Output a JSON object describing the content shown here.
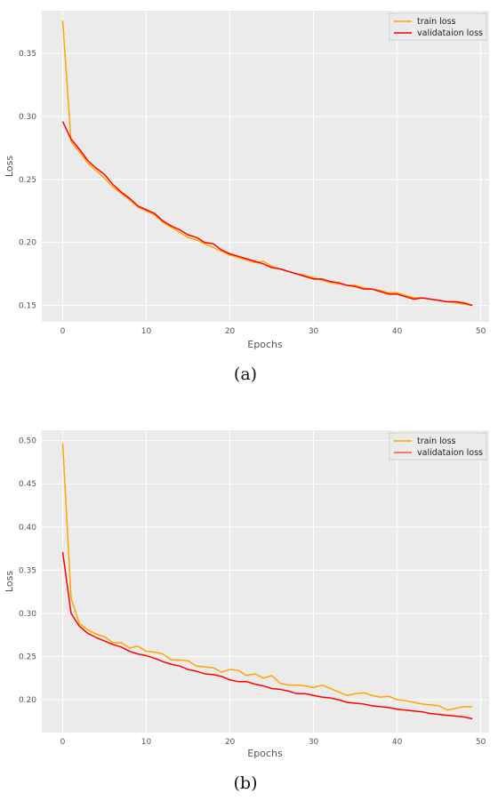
{
  "chart_data": [
    {
      "type": "line",
      "caption": "(a)",
      "xlabel": "Epochs",
      "ylabel": "Loss",
      "xlim": [
        -2.5,
        51
      ],
      "ylim": [
        0.137,
        0.384
      ],
      "xticks": [
        0,
        10,
        20,
        30,
        40,
        50
      ],
      "yticks": [
        0.15,
        0.2,
        0.25,
        0.3,
        0.35
      ],
      "ytick_labels": [
        "0.15",
        "0.20",
        "0.25",
        "0.30",
        "0.35"
      ],
      "grid": true,
      "legend_position": "top-right",
      "colors": {
        "train": "#ffa500",
        "validation": "#ff0000"
      },
      "series": [
        {
          "name": "train loss",
          "color": "#ffa500",
          "values": [
            0.376,
            0.28,
            0.272,
            0.263,
            0.257,
            0.251,
            0.244,
            0.239,
            0.234,
            0.228,
            0.225,
            0.222,
            0.216,
            0.212,
            0.208,
            0.204,
            0.202,
            0.199,
            0.196,
            0.193,
            0.19,
            0.188,
            0.186,
            0.184,
            0.185,
            0.181,
            0.179,
            0.177,
            0.175,
            0.174,
            0.172,
            0.17,
            0.168,
            0.167,
            0.166,
            0.166,
            0.164,
            0.163,
            0.162,
            0.16,
            0.16,
            0.158,
            0.156,
            0.156,
            0.155,
            0.154,
            0.153,
            0.152,
            0.151,
            0.15
          ]
        },
        {
          "name": "validataion loss",
          "color": "#ff0000",
          "values": [
            0.296,
            0.282,
            0.274,
            0.265,
            0.259,
            0.254,
            0.246,
            0.24,
            0.235,
            0.229,
            0.226,
            0.223,
            0.217,
            0.213,
            0.21,
            0.206,
            0.204,
            0.2,
            0.199,
            0.194,
            0.191,
            0.189,
            0.187,
            0.185,
            0.183,
            0.18,
            0.179,
            0.177,
            0.175,
            0.173,
            0.171,
            0.171,
            0.169,
            0.168,
            0.166,
            0.165,
            0.163,
            0.163,
            0.161,
            0.159,
            0.159,
            0.157,
            0.155,
            0.156,
            0.155,
            0.154,
            0.153,
            0.153,
            0.152,
            0.15
          ]
        }
      ]
    },
    {
      "type": "line",
      "caption": "(b)",
      "xlabel": "Epochs",
      "ylabel": "Loss",
      "xlim": [
        -2.5,
        51
      ],
      "ylim": [
        0.162,
        0.512
      ],
      "xticks": [
        0,
        10,
        20,
        30,
        40,
        50
      ],
      "yticks": [
        0.2,
        0.25,
        0.3,
        0.35,
        0.4,
        0.45,
        0.5
      ],
      "ytick_labels": [
        "0.20",
        "0.25",
        "0.30",
        "0.35",
        "0.40",
        "0.45",
        "0.50"
      ],
      "grid": true,
      "legend_position": "top-right",
      "colors": {
        "train": "#ffa500",
        "validation": "#ff0000"
      },
      "series": [
        {
          "name": "train loss",
          "color": "#ffa500",
          "values": [
            0.497,
            0.318,
            0.288,
            0.281,
            0.276,
            0.273,
            0.266,
            0.266,
            0.26,
            0.262,
            0.256,
            0.255,
            0.253,
            0.246,
            0.246,
            0.245,
            0.239,
            0.238,
            0.237,
            0.232,
            0.235,
            0.234,
            0.228,
            0.23,
            0.225,
            0.228,
            0.219,
            0.217,
            0.217,
            0.216,
            0.214,
            0.217,
            0.213,
            0.209,
            0.205,
            0.207,
            0.208,
            0.205,
            0.203,
            0.204,
            0.2,
            0.199,
            0.197,
            0.195,
            0.194,
            0.193,
            0.188,
            0.19,
            0.192,
            0.192
          ]
        },
        {
          "name": "validataion loss",
          "color": "#ff0000",
          "values": [
            0.371,
            0.3,
            0.285,
            0.277,
            0.272,
            0.268,
            0.264,
            0.261,
            0.256,
            0.253,
            0.251,
            0.248,
            0.244,
            0.241,
            0.239,
            0.235,
            0.233,
            0.23,
            0.229,
            0.227,
            0.223,
            0.221,
            0.221,
            0.218,
            0.216,
            0.213,
            0.212,
            0.21,
            0.207,
            0.207,
            0.205,
            0.203,
            0.202,
            0.2,
            0.197,
            0.196,
            0.195,
            0.193,
            0.192,
            0.191,
            0.189,
            0.188,
            0.187,
            0.186,
            0.184,
            0.183,
            0.182,
            0.181,
            0.18,
            0.178
          ]
        }
      ]
    }
  ]
}
